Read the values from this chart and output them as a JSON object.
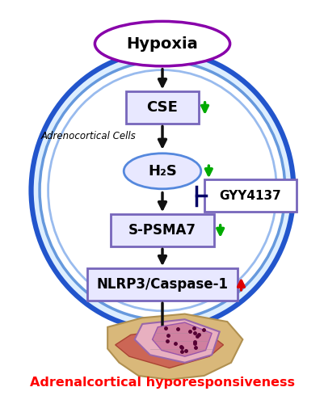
{
  "title": "Adrenalcortical hyporesponsiveness",
  "title_color": "#ff0000",
  "hypoxia_label": "Hypoxia",
  "cse_label": "CSE",
  "h2s_label": "H₂S",
  "spsma7_label": "S-PSMA7",
  "nlrp3_label": "NLRP3/Caspase-1",
  "gyy_label": "GYY4137",
  "adrenocortical_label": "Adrenocortical Cells",
  "box_facecolor": "#e8e8ff",
  "box_edgecolor": "#7766bb",
  "hypoxia_edge": "#8800aa",
  "h2s_edge": "#5588dd",
  "outer_edge": "#2255cc",
  "inner_edge": "#99bbee",
  "green": "#00aa00",
  "red": "#dd0000",
  "inhibit_color": "#000066",
  "arrow_color": "#111111"
}
